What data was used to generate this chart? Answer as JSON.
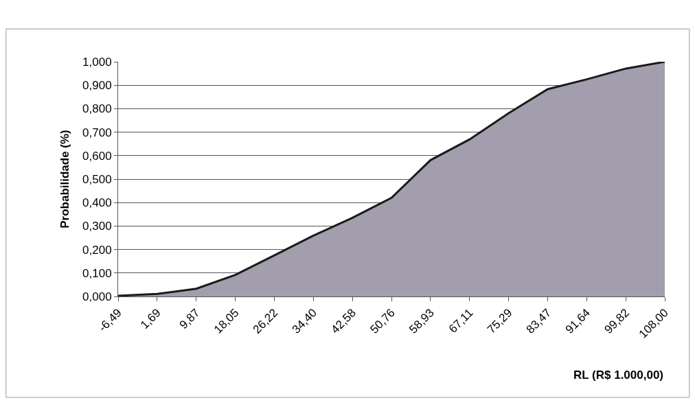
{
  "chart_data": {
    "type": "area",
    "xlabel": "RL (R$ 1.000,00)",
    "ylabel": "Probabilidade (%)",
    "categories": [
      "-6,49",
      "1,69",
      "9,87",
      "18,05",
      "26,22",
      "34,40",
      "42,58",
      "50,76",
      "58,93",
      "67,11",
      "75,29",
      "83,47",
      "91,64",
      "99,82",
      "108,00"
    ],
    "series": [
      {
        "color": "#a39eae",
        "values": [
          0.003,
          0.011,
          0.033,
          0.092,
          0.175,
          0.259,
          0.335,
          0.42,
          0.581,
          0.669,
          0.781,
          0.883,
          0.925,
          0.971,
          1.0
        ]
      }
    ],
    "ylim": [
      0,
      1
    ],
    "yticks": [
      {
        "value": 0,
        "label": "0,000"
      },
      {
        "value": 0.1,
        "label": "0,100"
      },
      {
        "value": 0.2,
        "label": "0,200"
      },
      {
        "value": 0.3,
        "label": "0,300"
      },
      {
        "value": 0.4,
        "label": "0,400"
      },
      {
        "value": 0.5,
        "label": "0,500"
      },
      {
        "value": 0.6,
        "label": "0,600"
      },
      {
        "value": 0.7,
        "label": "0,700"
      },
      {
        "value": 0.8,
        "label": "0,800"
      },
      {
        "value": 0.9,
        "label": "0,900"
      },
      {
        "value": 1,
        "label": "1,000"
      }
    ],
    "grid": "y"
  }
}
